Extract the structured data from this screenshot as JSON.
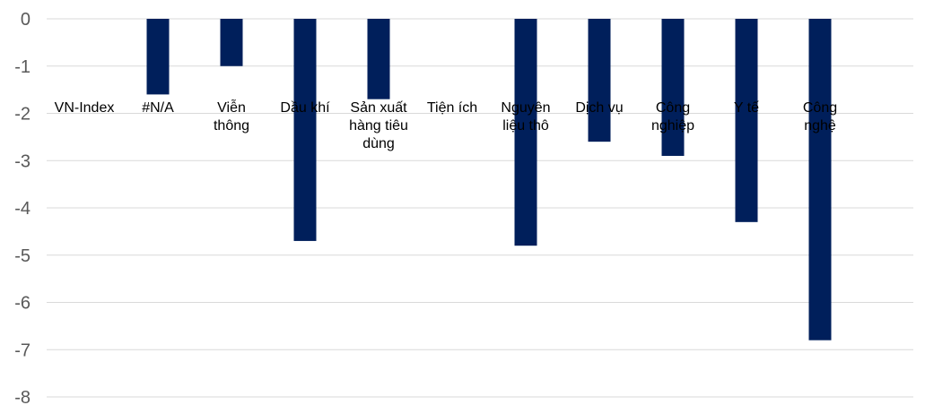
{
  "chart_data": {
    "type": "bar",
    "title": "",
    "xlabel": "",
    "ylabel": "",
    "ylim": [
      -8,
      0
    ],
    "yticks": [
      0,
      -1,
      -2,
      -3,
      -4,
      -5,
      -6,
      -7,
      -8
    ],
    "grid": true,
    "categories": [
      [
        "VN-Index"
      ],
      [
        "#N/A"
      ],
      [
        "Viễn",
        "thông"
      ],
      [
        "Dầu khí"
      ],
      [
        "Sản xuất",
        "hàng tiêu",
        "dùng"
      ],
      [
        "Tiện ích"
      ],
      [
        "Nguyên",
        "liệu thô"
      ],
      [
        "Dịch vụ"
      ],
      [
        "Công",
        "nghiệp"
      ],
      [
        "Y tế"
      ],
      [
        "Công",
        "nghệ"
      ]
    ],
    "values": [
      0,
      -1.6,
      -1.0,
      -4.7,
      -1.7,
      0,
      -4.8,
      -2.6,
      -2.9,
      -4.3,
      -6.8
    ],
    "bar_color": "#001f5b"
  }
}
